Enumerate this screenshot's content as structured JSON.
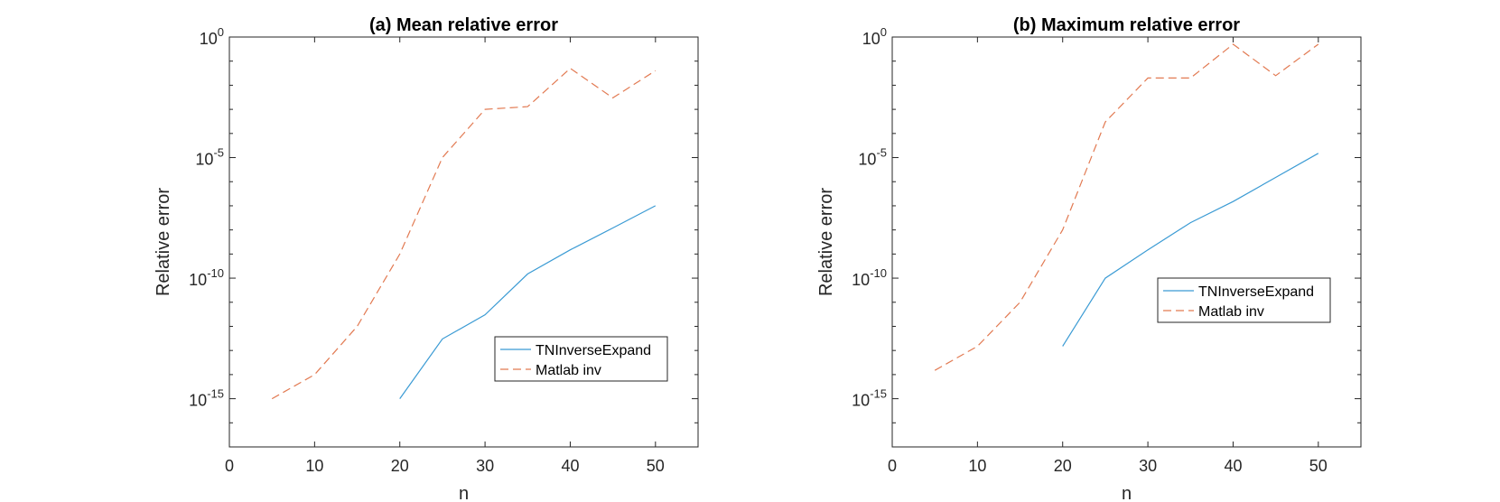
{
  "chart_data": [
    {
      "type": "line",
      "title": "(a) Mean relative error",
      "xlabel": "n",
      "ylabel": "Relative error",
      "xlim": [
        0,
        55
      ],
      "ylim_log10": [
        -17,
        0
      ],
      "y_scale": "log",
      "x_ticks": [
        0,
        10,
        20,
        30,
        40,
        50
      ],
      "y_ticks": [
        {
          "base": "10",
          "exp": "0"
        },
        {
          "base": "10",
          "exp": "-5"
        },
        {
          "base": "10",
          "exp": "-10"
        },
        {
          "base": "10",
          "exp": "-15"
        }
      ],
      "grid": false,
      "legend_position": "lower-right",
      "series": [
        {
          "name": "TNInverseExpand",
          "style": "solid",
          "color": "#3b9bd4",
          "x": [
            20,
            25,
            30,
            35,
            40,
            45,
            50
          ],
          "y": [
            1e-15,
            3e-13,
            3e-12,
            1.5e-10,
            1.5e-09,
            1.2e-08,
            1e-07
          ]
        },
        {
          "name": "Matlab inv",
          "style": "dashed",
          "color": "#e27a52",
          "x": [
            5,
            10,
            15,
            20,
            25,
            30,
            35,
            40,
            45,
            50
          ],
          "y": [
            1e-15,
            1e-14,
            1e-12,
            1e-09,
            1e-05,
            0.001,
            0.0013,
            0.05,
            0.003,
            0.04
          ]
        }
      ]
    },
    {
      "type": "line",
      "title": "(b) Maximum relative error",
      "xlabel": "n",
      "ylabel": "Relative error",
      "xlim": [
        0,
        55
      ],
      "ylim_log10": [
        -17,
        0
      ],
      "y_scale": "log",
      "x_ticks": [
        0,
        10,
        20,
        30,
        40,
        50
      ],
      "y_ticks": [
        {
          "base": "10",
          "exp": "0"
        },
        {
          "base": "10",
          "exp": "-5"
        },
        {
          "base": "10",
          "exp": "-10"
        },
        {
          "base": "10",
          "exp": "-15"
        }
      ],
      "grid": false,
      "legend_position": "right",
      "series": [
        {
          "name": "TNInverseExpand",
          "style": "solid",
          "color": "#3b9bd4",
          "x": [
            20,
            25,
            30,
            35,
            40,
            45,
            50
          ],
          "y": [
            1.5e-13,
            1e-10,
            1.5e-09,
            2e-08,
            1.5e-07,
            1.5e-06,
            1.5e-05
          ]
        },
        {
          "name": "Matlab inv",
          "style": "dashed",
          "color": "#e27a52",
          "x": [
            5,
            10,
            15,
            20,
            25,
            30,
            35,
            40,
            45,
            50
          ],
          "y": [
            1.5e-14,
            1.5e-13,
            1e-11,
            1e-08,
            0.0003,
            0.02,
            0.02,
            0.5,
            0.025,
            0.5
          ]
        }
      ]
    }
  ]
}
